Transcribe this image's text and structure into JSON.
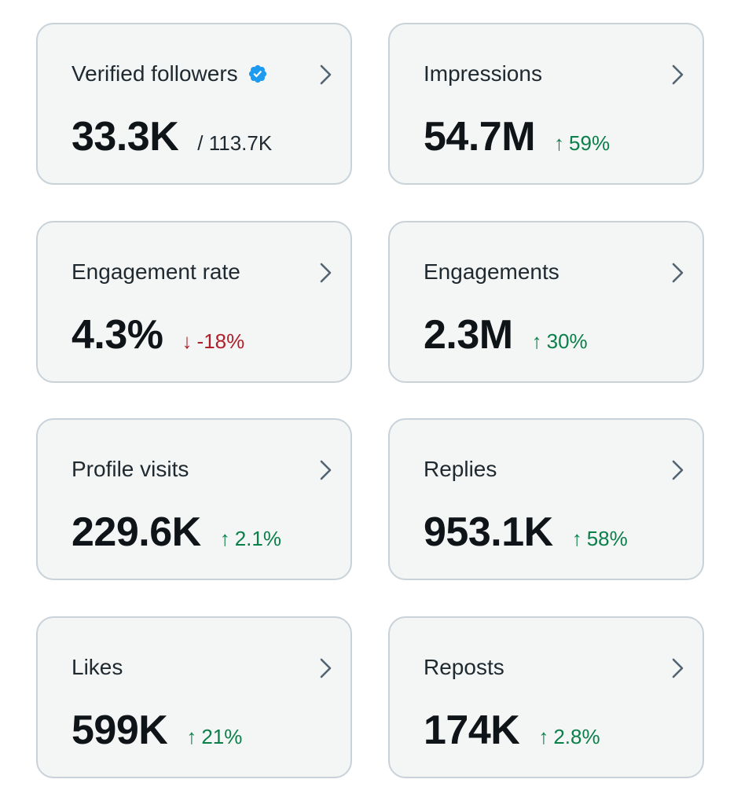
{
  "colors": {
    "card_bg": "#f4f5f5",
    "card_border": "#c9d2d8",
    "positive": "#0a7f4a",
    "negative": "#b0202a",
    "verified_badge": "#1d9bf0"
  },
  "cards": {
    "verified_followers": {
      "title": "Verified followers",
      "value": "33.3K",
      "sub": "/ 113.7K"
    },
    "impressions": {
      "title": "Impressions",
      "value": "54.7M",
      "arrow": "↑",
      "delta": "59%"
    },
    "engagement_rate": {
      "title": "Engagement rate",
      "value": "4.3%",
      "arrow": "↓",
      "delta": "-18%"
    },
    "engagements": {
      "title": "Engagements",
      "value": "2.3M",
      "arrow": "↑",
      "delta": "30%"
    },
    "profile_visits": {
      "title": "Profile visits",
      "value": "229.6K",
      "arrow": "↑",
      "delta": "2.1%"
    },
    "replies": {
      "title": "Replies",
      "value": "953.1K",
      "arrow": "↑",
      "delta": "58%"
    },
    "likes": {
      "title": "Likes",
      "value": "599K",
      "arrow": "↑",
      "delta": "21%"
    },
    "reposts": {
      "title": "Reposts",
      "value": "174K",
      "arrow": "↑",
      "delta": "2.8%"
    }
  }
}
